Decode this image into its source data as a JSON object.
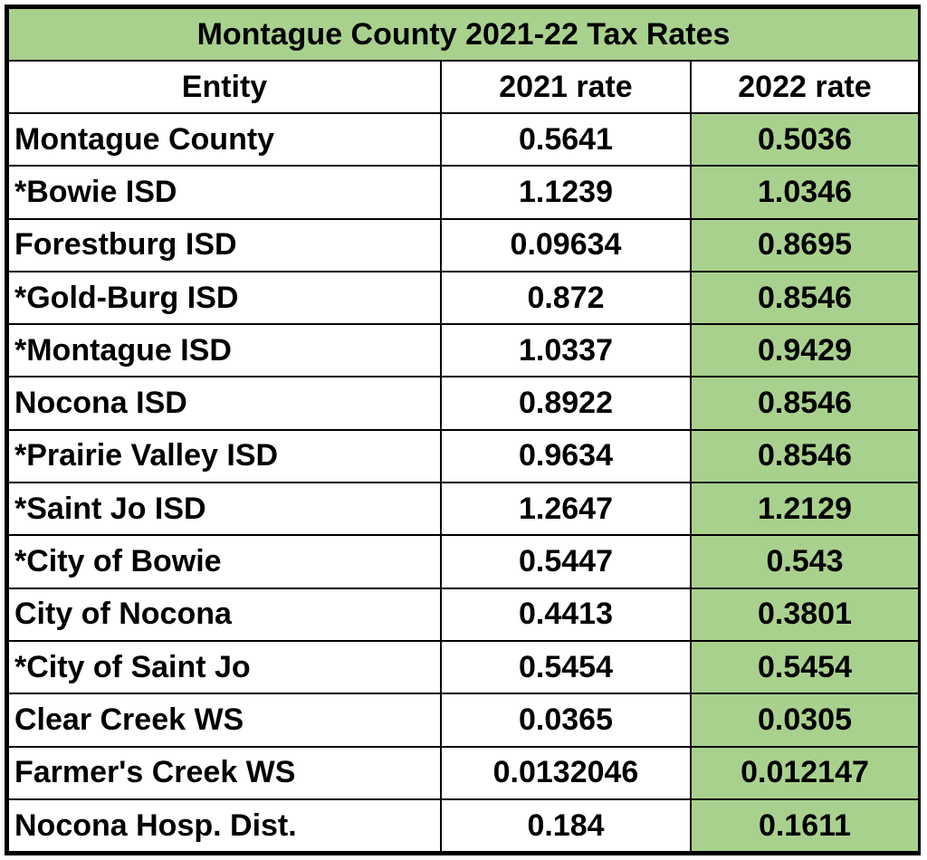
{
  "title": "Montague County 2021-22 Tax Rates",
  "columns": [
    "Entity",
    "2021 rate",
    "2022 rate"
  ],
  "rows": [
    {
      "entity": "Montague County",
      "rate_2021": "0.5641",
      "rate_2022": "0.5036"
    },
    {
      "entity": "*Bowie ISD",
      "rate_2021": "1.1239",
      "rate_2022": "1.0346"
    },
    {
      "entity": "Forestburg ISD",
      "rate_2021": "0.09634",
      "rate_2022": "0.8695"
    },
    {
      "entity": "*Gold-Burg ISD",
      "rate_2021": "0.872",
      "rate_2022": "0.8546"
    },
    {
      "entity": "*Montague ISD",
      "rate_2021": "1.0337",
      "rate_2022": "0.9429"
    },
    {
      "entity": "Nocona ISD",
      "rate_2021": "0.8922",
      "rate_2022": "0.8546"
    },
    {
      "entity": "*Prairie Valley ISD",
      "rate_2021": "0.9634",
      "rate_2022": "0.8546"
    },
    {
      "entity": "*Saint Jo ISD",
      "rate_2021": "1.2647",
      "rate_2022": "1.2129"
    },
    {
      "entity": "*City of Bowie",
      "rate_2021": "0.5447",
      "rate_2022": "0.543"
    },
    {
      "entity": "City of Nocona",
      "rate_2021": "0.4413",
      "rate_2022": "0.3801"
    },
    {
      "entity": "*City of Saint Jo",
      "rate_2021": "0.5454",
      "rate_2022": "0.5454"
    },
    {
      "entity": "Clear Creek WS",
      "rate_2021": "0.0365",
      "rate_2022": "0.0305"
    },
    {
      "entity": "Farmer's Creek WS",
      "rate_2021": "0.0132046",
      "rate_2022": "0.012147"
    },
    {
      "entity": "Nocona Hosp. Dist.",
      "rate_2021": "0.184",
      "rate_2022": "0.1611"
    }
  ],
  "colors": {
    "highlight": "#a9d18e",
    "border": "#000000",
    "background": "#ffffff"
  }
}
